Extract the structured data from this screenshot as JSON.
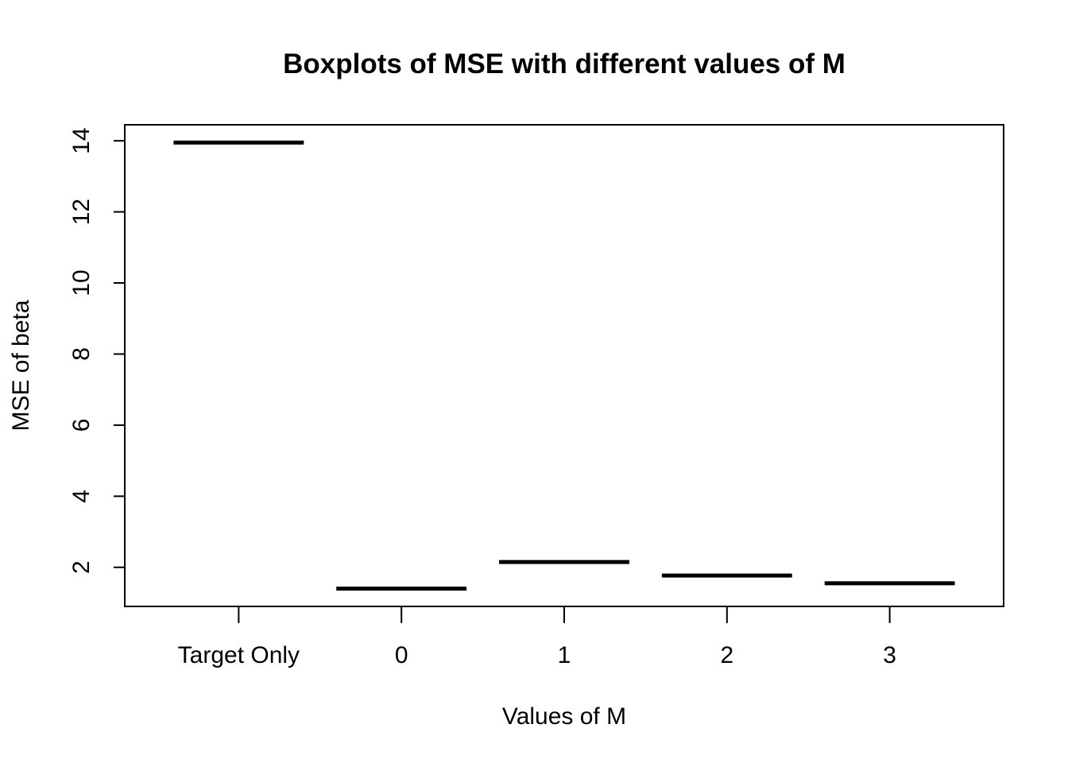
{
  "chart_data": {
    "type": "bar",
    "chart_subtype": "boxplot",
    "title": "Boxplots of MSE with different values of M",
    "xlabel": "Values of M",
    "ylabel": "MSE of beta",
    "categories": [
      "Target Only",
      "0",
      "1",
      "2",
      "3"
    ],
    "values": [
      13.95,
      1.4,
      2.15,
      1.77,
      1.55
    ],
    "ylim": [
      0.9,
      14.45
    ],
    "yticks": [
      2,
      4,
      6,
      8,
      10,
      12,
      14
    ],
    "ytick_labels": [
      "2",
      "4",
      "6",
      "8",
      "10",
      "12",
      "14"
    ],
    "grid": false,
    "legend": "none",
    "colors": {
      "line": "#000000",
      "background": "#ffffff"
    }
  }
}
